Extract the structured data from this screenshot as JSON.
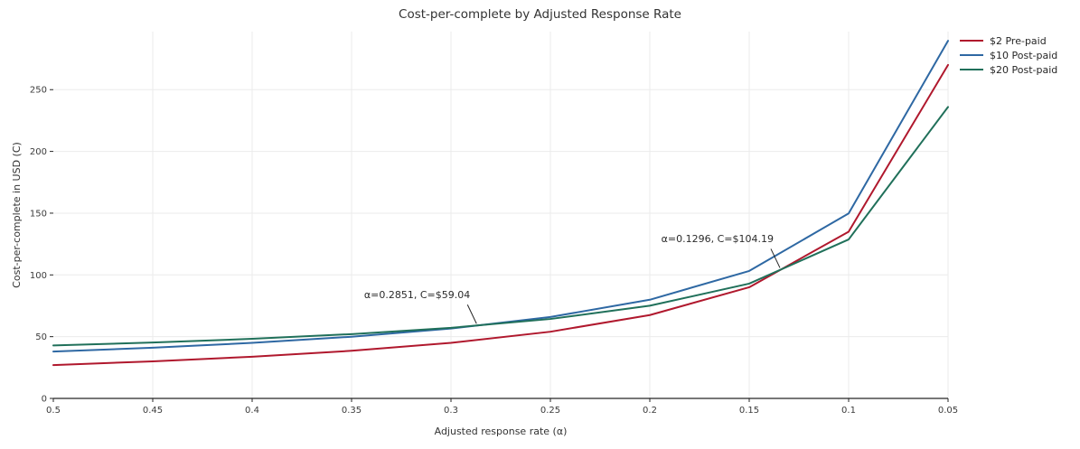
{
  "chart_data": {
    "type": "line",
    "title": "Cost-per-complete by Adjusted Response Rate",
    "xlabel": "Adjusted response rate (α)",
    "ylabel": "Cost-per-complete in USD (C)",
    "x_axis_reversed": true,
    "grid": true,
    "legend_position": "top-right-outside",
    "x_ticks": [
      0.5,
      0.45,
      0.4,
      0.35,
      0.3,
      0.25,
      0.2,
      0.15,
      0.1,
      0.05
    ],
    "x_tick_labels": [
      "0.5",
      "0.45",
      "0.4",
      "0.35",
      "0.3",
      "0.25",
      "0.2",
      "0.15",
      "0.1",
      "0.05"
    ],
    "y_ticks": [
      0,
      50,
      100,
      150,
      200,
      250
    ],
    "ylim": [
      0,
      297
    ],
    "x": [
      0.5,
      0.45,
      0.4,
      0.35,
      0.3,
      0.25,
      0.2,
      0.15,
      0.1,
      0.05
    ],
    "series": [
      {
        "name": "$2 Pre-paid",
        "color": "#b0182d",
        "values": [
          27.0,
          30.0,
          33.75,
          38.57,
          45.0,
          54.0,
          67.5,
          90.0,
          135.0,
          270.0
        ]
      },
      {
        "name": "$10 Post-paid",
        "color": "#2e68a3",
        "values": [
          37.96,
          41.07,
          44.95,
          49.94,
          56.6,
          65.92,
          79.9,
          103.2,
          149.8,
          289.6
        ]
      },
      {
        "name": "$20 Post-paid",
        "color": "#20705a",
        "values": [
          42.87,
          45.25,
          48.24,
          52.07,
          57.18,
          64.33,
          75.06,
          92.94,
          128.71,
          236.01
        ]
      }
    ],
    "annotations": [
      {
        "text": "α=0.2851, C=$59.04",
        "x": 0.2867,
        "y": 59.07
      },
      {
        "text": "α=0.1296, C=$104.19",
        "x": 0.1341,
        "y": 104.3
      }
    ],
    "colors": {
      "axis": "#262626",
      "grid": "#ebebeb",
      "tick_label": "#3b3b3b",
      "text": "#333333"
    }
  }
}
